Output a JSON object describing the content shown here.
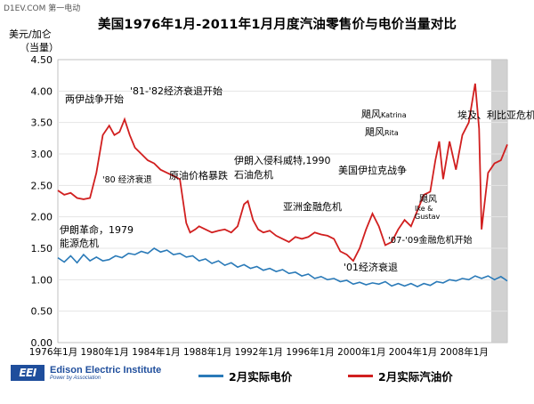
{
  "watermark": "D1EV.COM 第一电动",
  "chart_data": {
    "type": "line",
    "title": "美国1976年1月-2011年1月月度汽油零售价与电价当量对比",
    "ylabel_line1": "美元/加仑",
    "ylabel_line2": "（当量）",
    "xlabel": "",
    "ylim": [
      0,
      4.5
    ],
    "yticks": [
      "0.00",
      "0.50",
      "1.00",
      "1.50",
      "2.00",
      "2.50",
      "3.00",
      "3.50",
      "4.00",
      "4.50"
    ],
    "xlim": [
      1976,
      2011
    ],
    "xticks": [
      "1976年1月",
      "1980年1月",
      "1984年1月",
      "1988年1月",
      "1992年1月",
      "1996年1月",
      "2000年1月",
      "2004年1月",
      "2008年1月"
    ],
    "grid": true,
    "legend_position": "bottom",
    "shaded_region": {
      "x_from": 2009.75,
      "x_to": 2011
    },
    "colors": {
      "electricity": "#2a7ab8",
      "gasoline": "#d11f1f",
      "shade": "#c9c9c9"
    },
    "series": [
      {
        "name": "2月实际电价",
        "x": [
          1976.0,
          1976.5,
          1977.0,
          1977.5,
          1978.0,
          1978.5,
          1979.0,
          1979.5,
          1980.0,
          1980.5,
          1981.0,
          1981.5,
          1982.0,
          1982.5,
          1983.0,
          1983.5,
          1984.0,
          1984.5,
          1985.0,
          1985.5,
          1986.0,
          1986.5,
          1987.0,
          1987.5,
          1988.0,
          1988.5,
          1989.0,
          1989.5,
          1990.0,
          1990.5,
          1991.0,
          1991.5,
          1992.0,
          1992.5,
          1993.0,
          1993.5,
          1994.0,
          1994.5,
          1995.0,
          1995.5,
          1996.0,
          1996.5,
          1997.0,
          1997.5,
          1998.0,
          1998.5,
          1999.0,
          1999.5,
          2000.0,
          2000.5,
          2001.0,
          2001.5,
          2002.0,
          2002.5,
          2003.0,
          2003.5,
          2004.0,
          2004.5,
          2005.0,
          2005.5,
          2006.0,
          2006.5,
          2007.0,
          2007.5,
          2008.0,
          2008.5,
          2009.0,
          2009.5,
          2010.0,
          2010.5,
          2011.0
        ],
        "values": [
          1.35,
          1.28,
          1.38,
          1.27,
          1.4,
          1.3,
          1.36,
          1.3,
          1.32,
          1.38,
          1.35,
          1.42,
          1.4,
          1.45,
          1.42,
          1.5,
          1.44,
          1.47,
          1.4,
          1.42,
          1.36,
          1.38,
          1.3,
          1.33,
          1.26,
          1.3,
          1.23,
          1.27,
          1.2,
          1.24,
          1.18,
          1.21,
          1.15,
          1.18,
          1.13,
          1.16,
          1.1,
          1.12,
          1.06,
          1.09,
          1.02,
          1.05,
          1.0,
          1.02,
          0.97,
          0.99,
          0.93,
          0.96,
          0.92,
          0.95,
          0.93,
          0.97,
          0.9,
          0.94,
          0.9,
          0.94,
          0.89,
          0.94,
          0.91,
          0.97,
          0.95,
          1.0,
          0.98,
          1.02,
          1.0,
          1.06,
          1.02,
          1.06,
          1.0,
          1.05,
          0.98
        ]
      },
      {
        "name": "2月实际汽油价",
        "x": [
          1976.0,
          1976.5,
          1977.0,
          1977.5,
          1978.0,
          1978.5,
          1979.0,
          1979.5,
          1980.0,
          1980.4,
          1980.8,
          1981.2,
          1981.6,
          1982.0,
          1982.5,
          1983.0,
          1983.5,
          1984.0,
          1984.5,
          1985.0,
          1985.5,
          1986.0,
          1986.3,
          1986.7,
          1987.0,
          1987.5,
          1988.0,
          1988.5,
          1989.0,
          1989.5,
          1990.0,
          1990.5,
          1990.8,
          1991.2,
          1991.6,
          1992.0,
          1992.5,
          1993.0,
          1993.5,
          1994.0,
          1994.5,
          1995.0,
          1995.5,
          1996.0,
          1996.5,
          1997.0,
          1997.5,
          1998.0,
          1998.5,
          1999.0,
          1999.5,
          2000.0,
          2000.5,
          2001.0,
          2001.5,
          2002.0,
          2002.5,
          2003.0,
          2003.5,
          2004.0,
          2004.5,
          2005.0,
          2005.4,
          2005.7,
          2006.0,
          2006.5,
          2007.0,
          2007.5,
          2008.0,
          2008.5,
          2008.8,
          2009.0,
          2009.5,
          2010.0,
          2010.5,
          2011.0
        ],
        "values": [
          2.42,
          2.35,
          2.38,
          2.3,
          2.28,
          2.3,
          2.7,
          3.3,
          3.45,
          3.3,
          3.35,
          3.55,
          3.3,
          3.1,
          3.0,
          2.9,
          2.85,
          2.75,
          2.7,
          2.65,
          2.6,
          1.9,
          1.75,
          1.8,
          1.85,
          1.8,
          1.75,
          1.78,
          1.8,
          1.75,
          1.85,
          2.2,
          2.25,
          1.95,
          1.8,
          1.75,
          1.78,
          1.7,
          1.65,
          1.6,
          1.68,
          1.65,
          1.68,
          1.75,
          1.72,
          1.7,
          1.65,
          1.45,
          1.4,
          1.3,
          1.5,
          1.8,
          2.05,
          1.85,
          1.55,
          1.6,
          1.8,
          1.95,
          1.85,
          2.1,
          2.35,
          2.4,
          2.9,
          3.2,
          2.6,
          3.2,
          2.75,
          3.3,
          3.5,
          4.12,
          3.4,
          1.8,
          2.7,
          2.85,
          2.9,
          3.15
        ]
      }
    ],
    "annotations": {
      "a1": "两伊战争开始",
      "a2": "'81-'82经济衰退开始",
      "a3": "'80 经济衰退",
      "a4": "伊朗革命，1979",
      "a5": "能源危机",
      "a6": "原油价格暴跌",
      "a7": "伊朗入侵科威特,1990",
      "a8": "石油危机",
      "a9": "亚洲金融危机",
      "a10": "'01经济衰退",
      "a11": "美国伊拉克战争",
      "a12a": "飓风",
      "a12b": "Katrina",
      "a13a": "飓风",
      "a13b": "Rita",
      "a14": "埃及、利比亚危机",
      "a15a": "飓风",
      "a15b": "Ike &",
      "a15c": "Gustav",
      "a16": "'07-'09金融危机开始"
    }
  },
  "footer": {
    "logo_abbr": "EEI",
    "logo_name": "Edison Electric Institute",
    "logo_tagline": "Power by Association"
  }
}
